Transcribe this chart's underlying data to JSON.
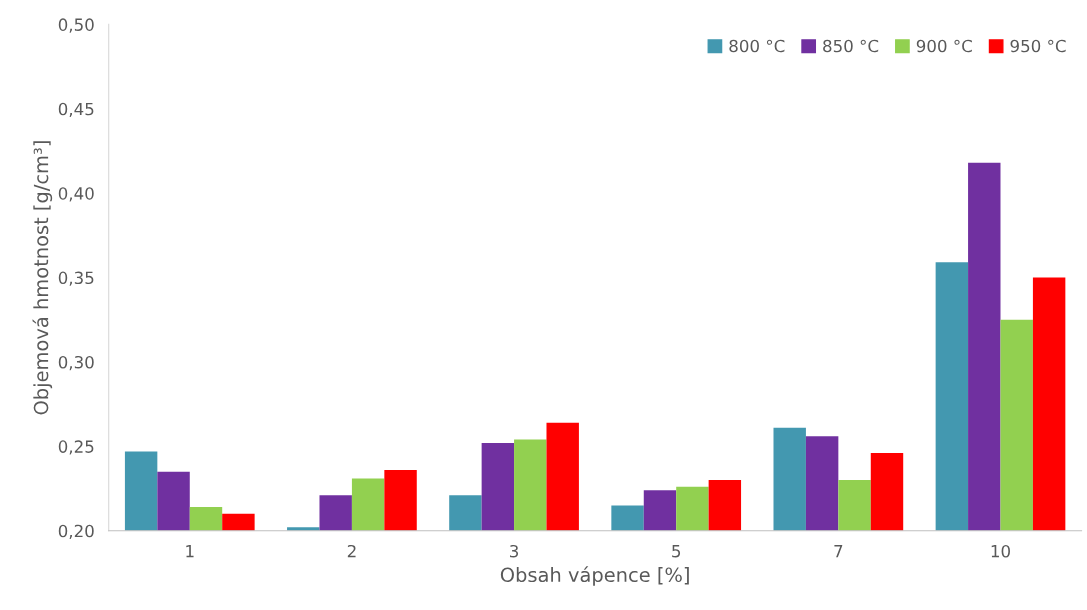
{
  "chart_data": {
    "type": "bar",
    "xlabel": "Obsah vápence [%]",
    "ylabel": "Objemová hmotnost [g/cm³]",
    "categories": [
      "1",
      "2",
      "3",
      "5",
      "7",
      "10"
    ],
    "series": [
      {
        "name": "800 °C",
        "color": "#4398b0",
        "values": [
          0.247,
          0.202,
          0.221,
          0.215,
          0.261,
          0.359
        ]
      },
      {
        "name": "850 °C",
        "color": "#7030a0",
        "values": [
          0.235,
          0.221,
          0.252,
          0.224,
          0.256,
          0.418
        ]
      },
      {
        "name": "900 °C",
        "color": "#92d050",
        "values": [
          0.214,
          0.231,
          0.254,
          0.226,
          0.23,
          0.325
        ]
      },
      {
        "name": "950 °C",
        "color": "#ff0000",
        "values": [
          0.21,
          0.236,
          0.264,
          0.23,
          0.246,
          0.35
        ]
      }
    ],
    "ylim": [
      0.2,
      0.5
    ],
    "yticks": [
      {
        "value": 0.2,
        "label": "0,20"
      },
      {
        "value": 0.25,
        "label": "0,25"
      },
      {
        "value": 0.3,
        "label": "0,30"
      },
      {
        "value": 0.35,
        "label": "0,35"
      },
      {
        "value": 0.4,
        "label": "0,40"
      },
      {
        "value": 0.45,
        "label": "0,45"
      },
      {
        "value": 0.5,
        "label": "0,50"
      }
    ],
    "grid": false,
    "legend": "top right"
  }
}
